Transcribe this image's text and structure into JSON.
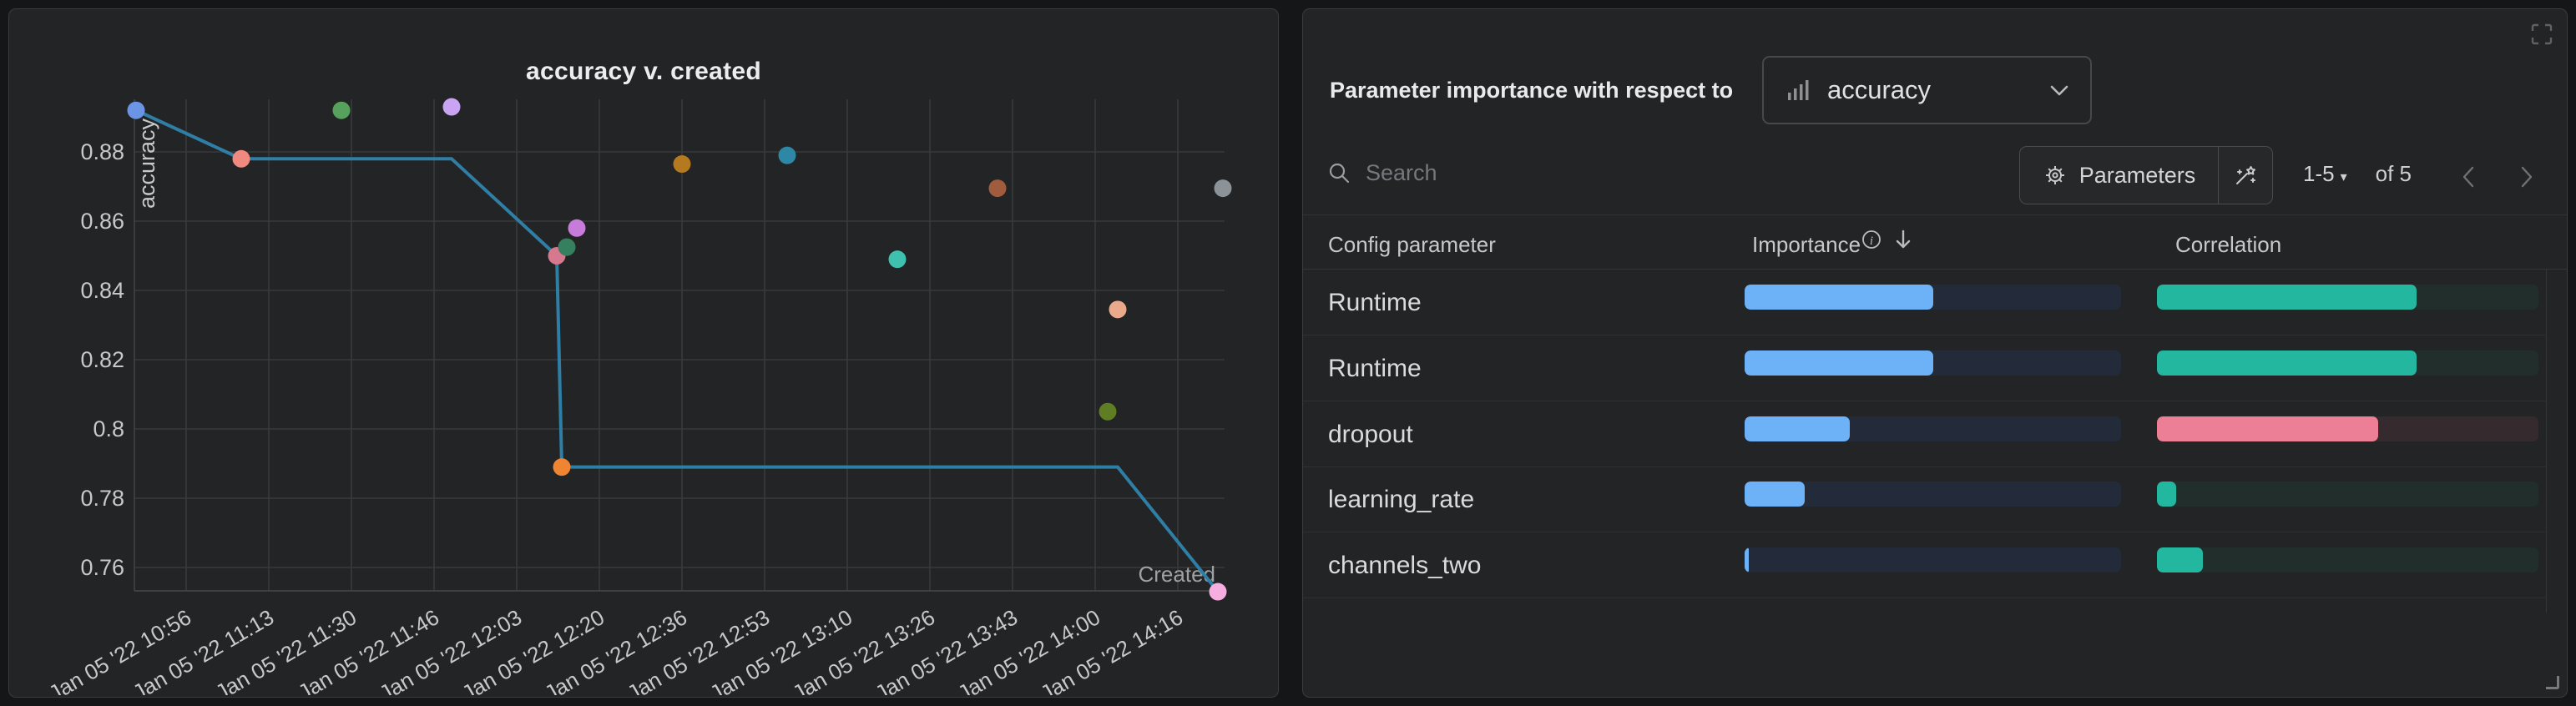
{
  "chart_panel": {
    "title": "accuracy v. created"
  },
  "chart_data": {
    "type": "scatter",
    "title": "accuracy v. created",
    "xlabel": "Created",
    "ylabel": "accuracy",
    "x_ticks": [
      "Jan 05 '22 10:56",
      "Jan 05 '22 11:13",
      "Jan 05 '22 11:30",
      "Jan 05 '22 11:46",
      "Jan 05 '22 12:03",
      "Jan 05 '22 12:20",
      "Jan 05 '22 12:36",
      "Jan 05 '22 12:53",
      "Jan 05 '22 13:10",
      "Jan 05 '22 13:26",
      "Jan 05 '22 13:43",
      "Jan 05 '22 14:00",
      "Jan 05 '22 14:16"
    ],
    "y_ticks": [
      "0.88",
      "0.86",
      "0.84",
      "0.82",
      "0.8",
      "0.78",
      "0.76"
    ],
    "grid": true,
    "points": [
      {
        "time": "10:46",
        "accuracy": 0.892,
        "color": "#6b93e6"
      },
      {
        "time": "11:07",
        "accuracy": 0.878,
        "color": "#f08a80"
      },
      {
        "time": "11:27",
        "accuracy": 0.892,
        "color": "#56a15b"
      },
      {
        "time": "11:49",
        "accuracy": 0.893,
        "color": "#c8a4f3"
      },
      {
        "time": "12:10",
        "accuracy": 0.85,
        "color": "#d6798f"
      },
      {
        "time": "12:12",
        "accuracy": 0.8525,
        "color": "#36805f"
      },
      {
        "time": "12:14",
        "accuracy": 0.858,
        "color": "#c77bdb"
      },
      {
        "time": "12:11",
        "accuracy": 0.789,
        "color": "#ef8433"
      },
      {
        "time": "12:35",
        "accuracy": 0.8765,
        "color": "#b5791f"
      },
      {
        "time": "12:56",
        "accuracy": 0.879,
        "color": "#2d87a5"
      },
      {
        "time": "13:18",
        "accuracy": 0.849,
        "color": "#3fc1b0"
      },
      {
        "time": "13:38",
        "accuracy": 0.8695,
        "color": "#a15c3e"
      },
      {
        "time": "14:00",
        "accuracy": 0.805,
        "color": "#5f7d23"
      },
      {
        "time": "14:02",
        "accuracy": 0.8345,
        "color": "#eba98b"
      },
      {
        "time": "14:22",
        "accuracy": 0.753,
        "color": "#f6aee0"
      },
      {
        "time": "14:23",
        "accuracy": 0.8695,
        "color": "#8b9298"
      }
    ],
    "line": {
      "color": "#2e7ea6",
      "vertices": [
        [
          "10:46",
          0.892
        ],
        [
          "11:07",
          0.878
        ],
        [
          "11:49",
          0.878
        ],
        [
          "12:10",
          0.85
        ],
        [
          "12:11",
          0.789
        ],
        [
          "14:02",
          0.789
        ],
        [
          "14:22",
          0.753
        ]
      ]
    }
  },
  "importance_panel": {
    "header_label": "Parameter importance with respect to",
    "metric_dropdown": {
      "value": "accuracy"
    },
    "search": {
      "placeholder": "Search"
    },
    "parameters_button_label": "Parameters",
    "pagination": {
      "range": "1-5",
      "caret": "▾",
      "of": "of 5"
    },
    "table": {
      "columns": {
        "param": "Config parameter",
        "importance": "Importance",
        "correlation": "Correlation"
      },
      "rows": [
        {
          "param": "Runtime",
          "importance": 0.5,
          "correlation": 0.68,
          "correlation_color": "teal"
        },
        {
          "param": "Runtime",
          "importance": 0.5,
          "correlation": 0.68,
          "correlation_color": "teal"
        },
        {
          "param": "dropout",
          "importance": 0.28,
          "correlation": 0.58,
          "correlation_color": "pink"
        },
        {
          "param": "learning_rate",
          "importance": 0.16,
          "correlation": 0.05,
          "correlation_color": "teal"
        },
        {
          "param": "channels_two",
          "importance": 0.012,
          "correlation": 0.12,
          "correlation_color": "teal"
        }
      ]
    },
    "colors": {
      "importance_fill": "#6db1f6",
      "importance_track": "#232b3a",
      "teal_fill": "#23b7a0",
      "teal_track": "#212e2c",
      "pink_fill": "#ec7e95",
      "pink_track": "#352a2e"
    },
    "icons": [
      "fullscreen-icon",
      "bar-chart-icon",
      "chevron-down-icon",
      "search-icon",
      "gear-icon",
      "magic-wand-icon",
      "info-icon",
      "sort-desc-icon",
      "chevron-left-icon",
      "chevron-right-icon",
      "resize-handle-icon"
    ]
  }
}
